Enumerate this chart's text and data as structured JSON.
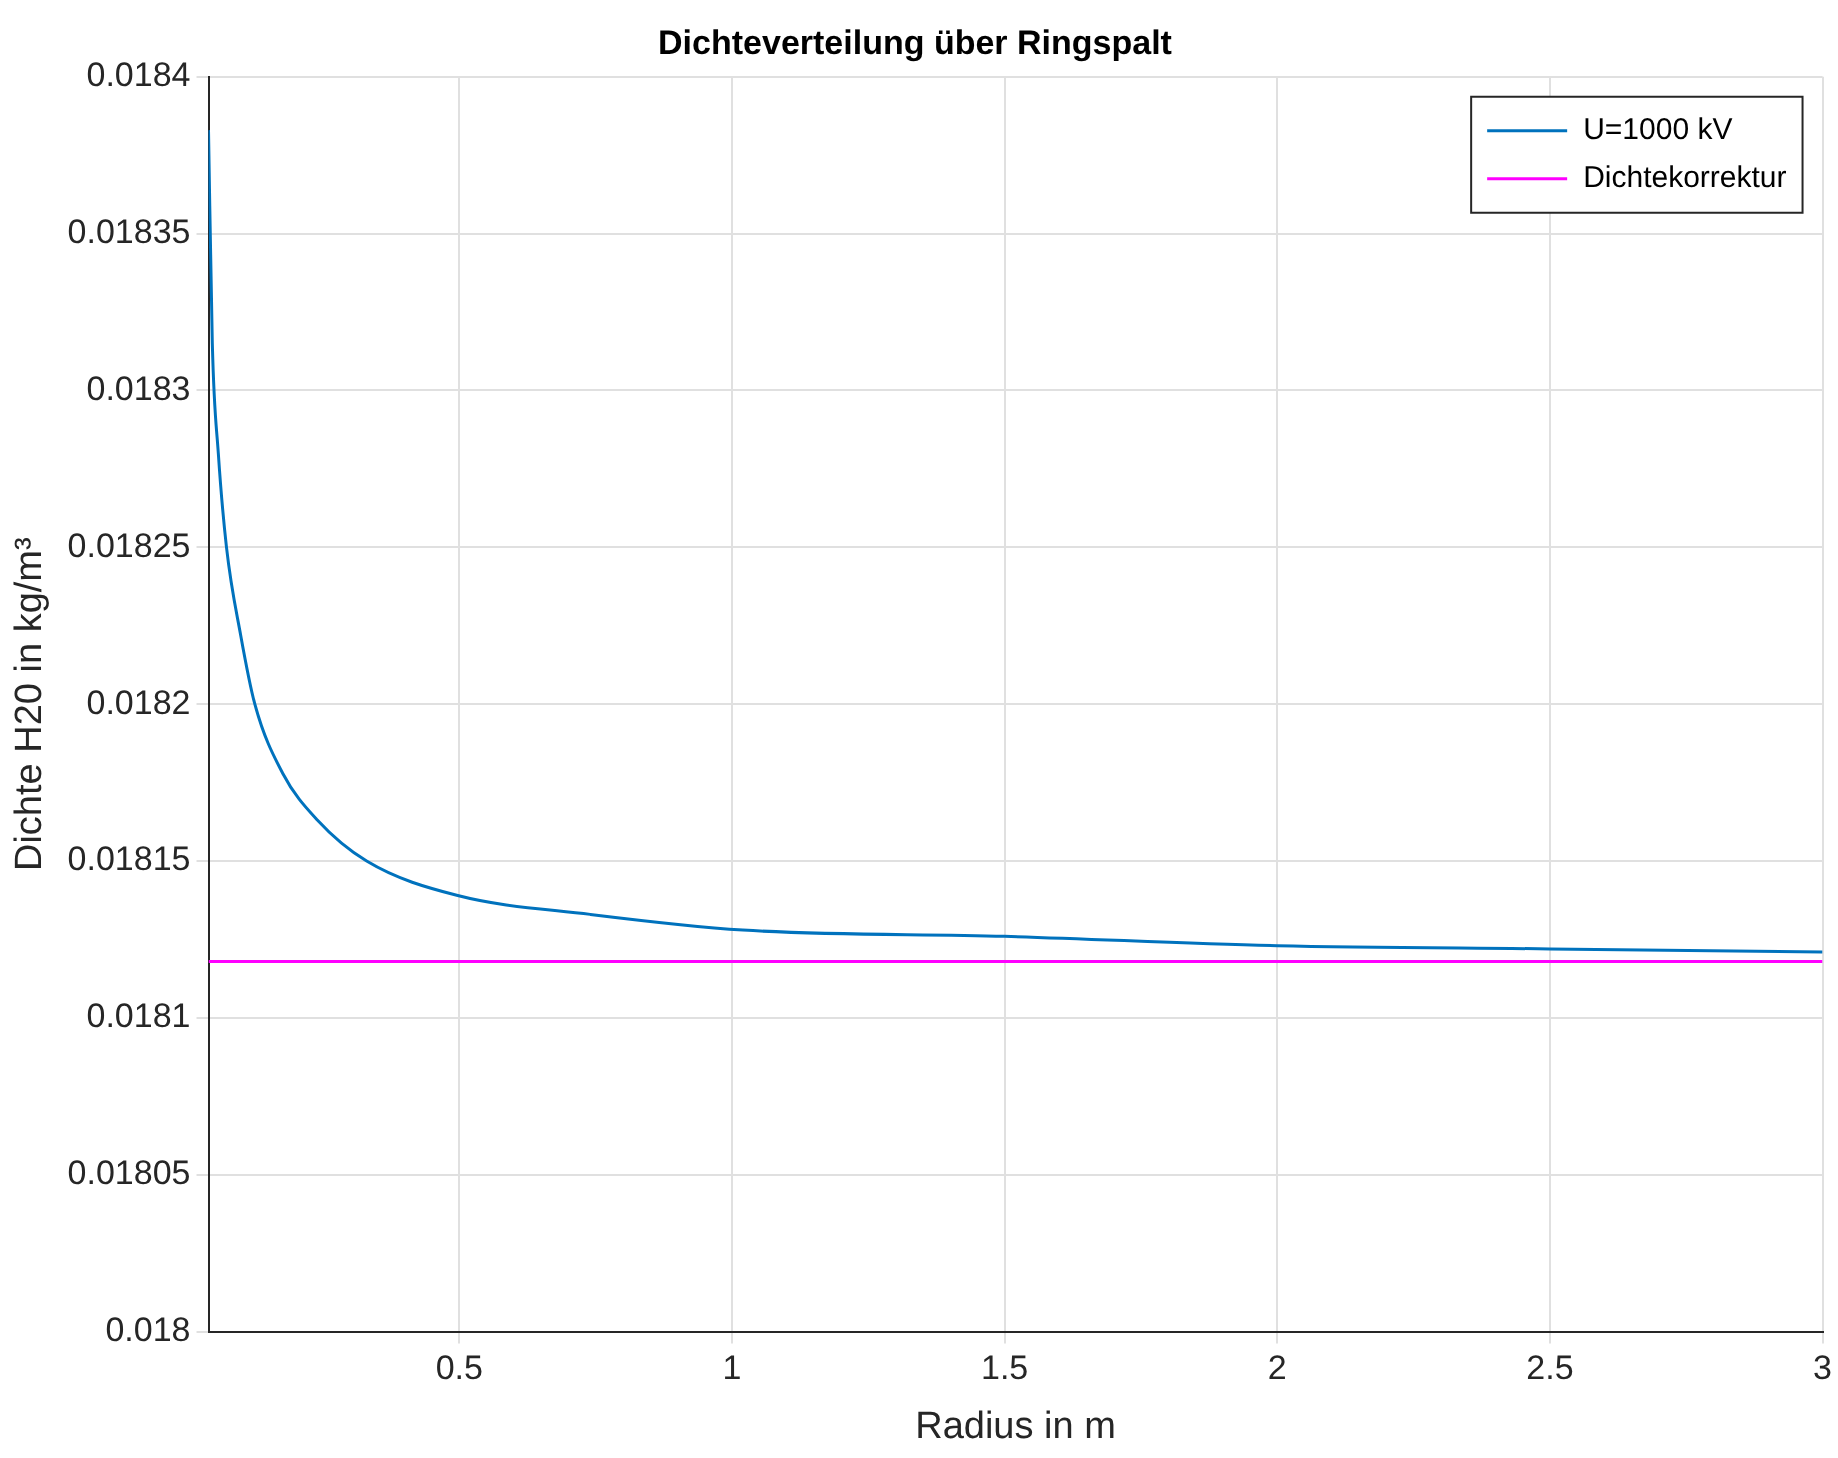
{
  "chart_data": {
    "type": "line",
    "title": "Dichteverteilung über Ringspalt",
    "xlabel": "Radius in m",
    "ylabel": "Dichte H20 in kg/m³",
    "xlim": [
      0.04,
      3
    ],
    "xticks": [
      0.5,
      1,
      1.5,
      2,
      2.5,
      3
    ],
    "ylim": [
      0.018,
      0.0184
    ],
    "yticks": [
      0.018,
      0.01805,
      0.0181,
      0.01815,
      0.0182,
      0.01825,
      0.0183,
      0.01835,
      0.0184
    ],
    "grid": true,
    "legend": "top right",
    "marker": "none",
    "line_style": "solid",
    "series": [
      {
        "name": "U=1000 kV",
        "color": "#0072bd",
        "x": [
          0.04,
          0.047,
          0.058,
          0.073,
          0.099,
          0.125,
          0.176,
          0.24,
          0.33,
          0.497,
          0.74,
          1.02,
          1.5,
          2,
          2.5,
          3
        ],
        "values": [
          0.018383,
          0.018315,
          0.01828,
          0.01825,
          0.018222,
          0.0182,
          0.018178,
          0.018163,
          0.01815,
          0.018139,
          0.018133,
          0.018128,
          0.018126,
          0.018123,
          0.018122,
          0.018121
        ]
      },
      {
        "name": "Dichtekorrektur",
        "color": "#ff00ff",
        "x": [
          0.04,
          3
        ],
        "values": [
          0.018118,
          0.018118
        ]
      }
    ]
  }
}
